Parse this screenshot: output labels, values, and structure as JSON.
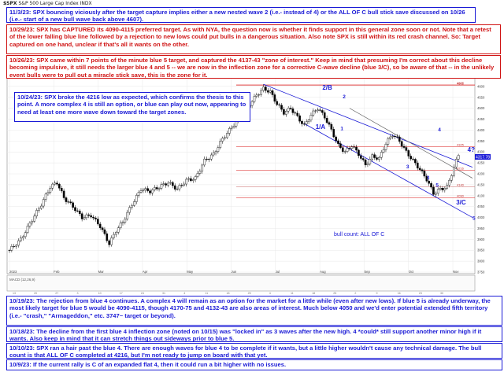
{
  "header": {
    "symbol": "$SPX",
    "name": "S&P 500 Large Cap Index",
    "exchange": "INDX"
  },
  "colors": {
    "blue": "#1a1ad6",
    "red": "#d01414",
    "candle_up": "#ffffff",
    "candle_down": "#000000",
    "channel": "#1a1ad6",
    "hline_red": "#e04040"
  },
  "notes": [
    {
      "id": "n1",
      "color": "blue",
      "date": "11/3/23:",
      "text": "SPX bouncing viciously after the target capture implies either a new nested wave 2 (i.e.- instead of 4) or the ALL OF C bull stick save discussed on 10/26 (i.e.- start of a new bull wave back above 4607)."
    },
    {
      "id": "n2",
      "color": "red",
      "date": "10/29/23:",
      "text": "SPX has CAPTURED its 4090-4115 preferred target.  As with NYA, the question now is whether it finds support in this general zone soon or not.  Note that a retest of the lower falling blue line followed by a rejection to new lows could put bulls in a dangerous situation.  Also note SPX is still within its red crash channel.  So:  Target captured on one hand, unclear if that's all it wants on the other."
    },
    {
      "id": "n3",
      "color": "red",
      "date": "10/26/23:",
      "text": "SPX came within 7 points of the minute blue 5 target, and captured the 4137-43 \"zone of interest.\"  Keep in mind that presuming I'm correct about this decline becoming impulsive, it still needs the larger blue 4 and 5 -- we are now in the inflection zone for a corrective C-wave decline (blue 3/C), so be aware of that -- in the unlikely event bulls were to pull out a miracle stick save, this is the zone for it."
    },
    {
      "id": "n4",
      "color": "blue",
      "date": "10/24/23:",
      "text": "SPX broke the 4216 low as expected, which confirms the thesis to this point.  A more complex 4 is still an option, or blue can play out now, appearing to need at least one more wave down toward the target zones."
    },
    {
      "id": "n5",
      "color": "blue",
      "date": "10/19/23:",
      "text": "The rejection from blue 4 continues.  A complex 4 will remain as an option for the market for a little while (even after new lows).  If blue 5 is already underway, the most likely target for blue 5 would be 4090-4115, though 4170-75 and 4132-43 are also areas of interest.  Much below 4050 and we'd enter potential extended fifth territory (i.e.- \"crash,\" \"Armageddon,\" etc. 3747~ target or beyond)."
    },
    {
      "id": "n6",
      "color": "blue",
      "date": "10/18/23:",
      "text": "The decline from the first blue 4 inflection zone (noted on 10/15) was \"locked in\" as 3 waves after the new high.  4 *could* still support another minor high if it wants.  Also keep in mind that it can stretch things out sideways prior to blue 5."
    },
    {
      "id": "n7",
      "color": "blue",
      "date": "10/10/23:",
      "text": "SPX ran a hair past the blue 4.  There are enough waves for blue 4 to be complete if it wants, but a little higher wouldn't cause any technical damage.  The bull count is that ALL OF C completed at 4216, but I'm not ready to jump on board with that yet."
    },
    {
      "id": "n8",
      "color": "blue",
      "date": "10/9/23:",
      "text": "If the current rally is C of an expanded flat 4, then it could run a bit higher with no issues."
    }
  ],
  "chart_data": {
    "type": "candlestick",
    "title": "$SPX S&P 500 Large Cap Index INDX",
    "x_labels": [
      "2023",
      "Feb",
      "Mar",
      "Apr",
      "May",
      "Jun",
      "Jul",
      "Aug",
      "Sep",
      "Oct",
      "Nov"
    ],
    "x_ticks_minor": [
      "13",
      "20",
      "27",
      "3",
      "10",
      "17",
      "24",
      "31",
      "4",
      "11",
      "18",
      "25",
      "4",
      "11",
      "18",
      "25",
      "2",
      "9",
      "16",
      "23",
      "30"
    ],
    "ylim": [
      3750,
      4650
    ],
    "y_ticks": [
      3750,
      3800,
      3850,
      3900,
      3950,
      4000,
      4050,
      4100,
      4150,
      4200,
      4250,
      4300,
      4350,
      4400,
      4450,
      4500,
      4550,
      4600,
      4650
    ],
    "legend": "$SPX (Daily) 4317.78",
    "last_price_label": "4317.78",
    "price_path": [
      [
        0,
        3850
      ],
      [
        5,
        3900
      ],
      [
        10,
        3990
      ],
      [
        14,
        4060
      ],
      [
        18,
        4140
      ],
      [
        21,
        4160
      ],
      [
        24,
        4090
      ],
      [
        28,
        4050
      ],
      [
        32,
        4000
      ],
      [
        36,
        4010
      ],
      [
        40,
        3960
      ],
      [
        44,
        3880
      ],
      [
        47,
        3940
      ],
      [
        50,
        3980
      ],
      [
        54,
        4060
      ],
      [
        58,
        4130
      ],
      [
        62,
        4120
      ],
      [
        66,
        4140
      ],
      [
        70,
        4160
      ],
      [
        74,
        4130
      ],
      [
        78,
        4170
      ],
      [
        82,
        4180
      ],
      [
        86,
        4260
      ],
      [
        90,
        4290
      ],
      [
        94,
        4360
      ],
      [
        97,
        4400
      ],
      [
        100,
        4440
      ],
      [
        103,
        4460
      ],
      [
        106,
        4520
      ],
      [
        109,
        4560
      ],
      [
        112,
        4590
      ],
      [
        115,
        4575
      ],
      [
        118,
        4520
      ],
      [
        121,
        4480
      ],
      [
        124,
        4500
      ],
      [
        127,
        4460
      ],
      [
        130,
        4420
      ],
      [
        133,
        4470
      ],
      [
        136,
        4500
      ],
      [
        139,
        4460
      ],
      [
        142,
        4400
      ],
      [
        145,
        4330
      ],
      [
        148,
        4300
      ],
      [
        151,
        4330
      ],
      [
        154,
        4290
      ],
      [
        157,
        4240
      ],
      [
        160,
        4280
      ],
      [
        163,
        4270
      ],
      [
        166,
        4340
      ],
      [
        169,
        4380
      ],
      [
        172,
        4350
      ],
      [
        175,
        4300
      ],
      [
        178,
        4260
      ],
      [
        181,
        4220
      ],
      [
        184,
        4175
      ],
      [
        187,
        4110
      ],
      [
        190,
        4130
      ],
      [
        193,
        4140
      ],
      [
        196,
        4230
      ],
      [
        199,
        4318
      ]
    ],
    "wave_labels": [
      "2/B",
      "2",
      "1/A",
      "1",
      "3",
      "4",
      "4?",
      "3/C",
      "5",
      "3",
      "5"
    ],
    "hline_labels": [
      "4605",
      "4607",
      "4325",
      "4216",
      "4140",
      "4090"
    ],
    "annotation": "bull count:  ALL OF C",
    "macd_label": "MACD (12,26,9)"
  }
}
